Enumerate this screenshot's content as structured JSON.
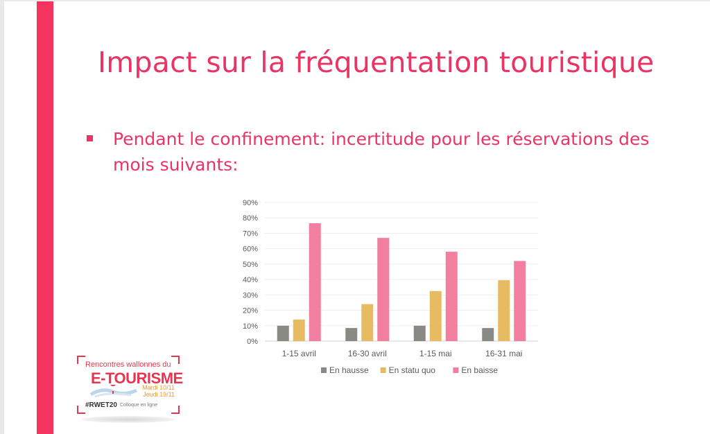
{
  "slide": {
    "title": "Impact sur la fréquentation touristique",
    "bullet": "Pendant le confinement: incertitude pour les réservations des mois suivants:"
  },
  "colors": {
    "accent": "#f2345f",
    "text": "#ea3464",
    "en_hausse": "#8a8a84",
    "en_statu_quo": "#e7bb62",
    "en_baisse": "#f27ea0"
  },
  "logo": {
    "line1": "Rencontres wallonnes du",
    "line2": "E-TOURISME",
    "date1": "Mardi 10/11",
    "date2": "Jeudi 19/11",
    "hashtag": "#RWET20",
    "tagline": "Colloque en ligne",
    "icon": "location-pin-icon"
  },
  "chart_data": {
    "type": "bar",
    "categories": [
      "1-15 avril",
      "16-30 avril",
      "1-15 mai",
      "16-31 mai"
    ],
    "series": [
      {
        "name": "En hausse",
        "color": "#8a8a84",
        "values": [
          10,
          8.5,
          10,
          8.5
        ]
      },
      {
        "name": "En statu quo",
        "color": "#e7bb62",
        "values": [
          14,
          24,
          32.5,
          39.5
        ]
      },
      {
        "name": "En baisse",
        "color": "#f27ea0",
        "values": [
          76.5,
          67,
          58,
          52
        ]
      }
    ],
    "yticks": [
      "0%",
      "10%",
      "20%",
      "30%",
      "40%",
      "50%",
      "60%",
      "70%",
      "80%",
      "90%"
    ],
    "ylim": [
      0,
      90
    ],
    "grid": true,
    "legend": "bottom"
  }
}
